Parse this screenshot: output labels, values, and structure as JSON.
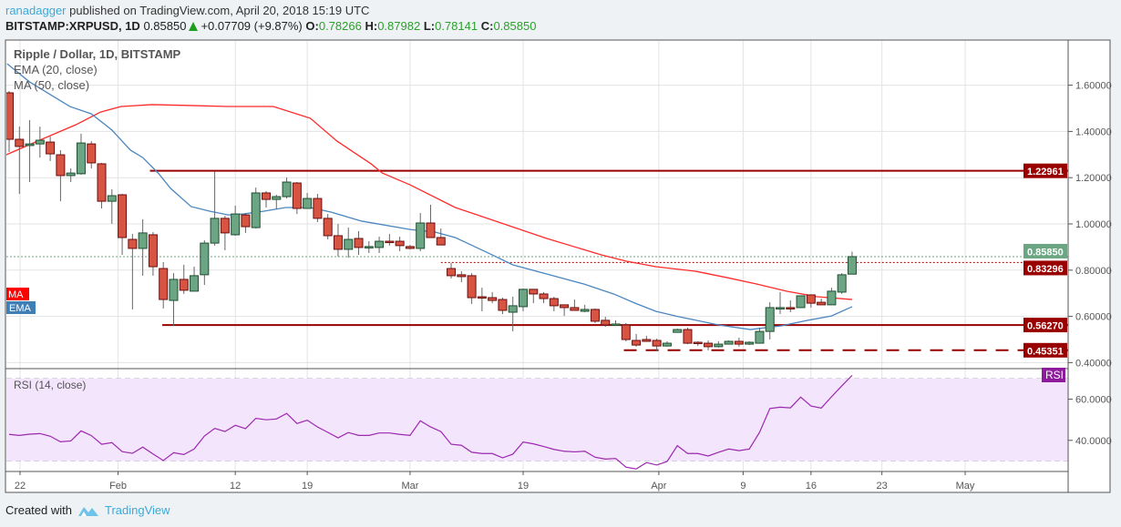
{
  "header": {
    "author": "ranadagger",
    "published_text": "published on TradingView.com, April 20, 2018 15:19 UTC",
    "symbol": "BITSTAMP:XRPUSD, 1D",
    "last": "0.85850",
    "change": "+0.07709 (+9.87%)",
    "open_label": "O:",
    "open": "0.78266",
    "high_label": "H:",
    "high": "0.87982",
    "low_label": "L:",
    "low": "0.78141",
    "close_label": "C:",
    "close": "0.85850"
  },
  "colors": {
    "up": "#6ba583",
    "up_border": "#1f4f30",
    "down": "#d75442",
    "down_border": "#6b0f0f",
    "ema": "#4a86c0",
    "ma": "#ff2a2a",
    "level": "#990000",
    "last_price": "#6ba583",
    "rsi": "#9c27b0",
    "rsi_bg": "#f3e5fc"
  },
  "chart_data": {
    "type": "candlestick",
    "title": "Ripple / Dollar, 1D, BITSTAMP",
    "legend": [
      "EMA (20, close)",
      "MA (50, close)"
    ],
    "series_tags": {
      "ma": "MA",
      "ema": "EMA"
    },
    "ylim": [
      0.38,
      1.78
    ],
    "price_ticks": [
      "1.60000",
      "1.40000",
      "1.20000",
      "1.00000",
      "0.80000",
      "0.60000",
      "0.40000"
    ],
    "x_ticks": [
      {
        "label": "22",
        "index": 1.06
      },
      {
        "label": "Feb",
        "index": 10.6
      },
      {
        "label": "12",
        "index": 22
      },
      {
        "label": "19",
        "index": 29
      },
      {
        "label": "Mar",
        "index": 39
      },
      {
        "label": "19",
        "index": 50
      },
      {
        "label": "Apr",
        "index": 63.2
      },
      {
        "label": "9",
        "index": 71.4
      },
      {
        "label": "16",
        "index": 78
      },
      {
        "label": "23",
        "index": 84.9
      },
      {
        "label": "May",
        "index": 93
      }
    ],
    "candles_ohlc": [
      [
        1.567,
        1.575,
        1.311,
        1.366
      ],
      [
        1.366,
        1.421,
        1.13,
        1.335
      ],
      [
        1.339,
        1.449,
        1.181,
        1.346
      ],
      [
        1.346,
        1.421,
        1.287,
        1.362
      ],
      [
        1.354,
        1.378,
        1.272,
        1.303
      ],
      [
        1.299,
        1.319,
        1.098,
        1.209
      ],
      [
        1.209,
        1.24,
        1.181,
        1.22
      ],
      [
        1.217,
        1.39,
        1.213,
        1.35
      ],
      [
        1.346,
        1.358,
        1.24,
        1.264
      ],
      [
        1.26,
        1.264,
        1.067,
        1.098
      ],
      [
        1.098,
        1.15,
        1.0,
        1.122
      ],
      [
        1.126,
        1.13,
        0.866,
        0.941
      ],
      [
        0.933,
        0.957,
        0.63,
        0.894
      ],
      [
        0.894,
        1.02,
        0.776,
        0.961
      ],
      [
        0.953,
        0.965,
        0.776,
        0.815
      ],
      [
        0.807,
        0.835,
        0.634,
        0.673
      ],
      [
        0.669,
        0.787,
        0.559,
        0.76
      ],
      [
        0.76,
        0.823,
        0.697,
        0.713
      ],
      [
        0.709,
        0.815,
        0.709,
        0.776
      ],
      [
        0.78,
        0.929,
        0.736,
        0.917
      ],
      [
        0.917,
        1.228,
        0.906,
        1.024
      ],
      [
        1.024,
        1.035,
        0.886,
        0.961
      ],
      [
        0.953,
        1.079,
        0.949,
        1.043
      ],
      [
        1.039,
        1.047,
        0.961,
        0.988
      ],
      [
        0.984,
        1.157,
        0.98,
        1.134
      ],
      [
        1.134,
        1.142,
        1.071,
        1.106
      ],
      [
        1.106,
        1.126,
        1.063,
        1.118
      ],
      [
        1.118,
        1.201,
        1.11,
        1.181
      ],
      [
        1.177,
        1.181,
        1.043,
        1.067
      ],
      [
        1.067,
        1.134,
        1.067,
        1.11
      ],
      [
        1.11,
        1.13,
        1.008,
        1.024
      ],
      [
        1.024,
        1.043,
        0.933,
        0.949
      ],
      [
        0.949,
        1.0,
        0.858,
        0.89
      ],
      [
        0.89,
        0.984,
        0.854,
        0.933
      ],
      [
        0.937,
        0.969,
        0.866,
        0.898
      ],
      [
        0.898,
        0.925,
        0.874,
        0.902
      ],
      [
        0.898,
        0.945,
        0.874,
        0.925
      ],
      [
        0.925,
        0.957,
        0.906,
        0.921
      ],
      [
        0.925,
        0.945,
        0.882,
        0.906
      ],
      [
        0.902,
        0.909,
        0.89,
        0.894
      ],
      [
        0.894,
        1.047,
        0.882,
        1.004
      ],
      [
        1.004,
        1.083,
        0.941,
        0.941
      ],
      [
        0.941,
        0.98,
        0.909,
        0.909
      ],
      [
        0.807,
        0.831,
        0.764,
        0.776
      ],
      [
        0.78,
        0.795,
        0.748,
        0.772
      ],
      [
        0.776,
        0.787,
        0.654,
        0.681
      ],
      [
        0.685,
        0.724,
        0.622,
        0.681
      ],
      [
        0.681,
        0.705,
        0.657,
        0.669
      ],
      [
        0.673,
        0.681,
        0.61,
        0.626
      ],
      [
        0.618,
        0.685,
        0.535,
        0.646
      ],
      [
        0.642,
        0.72,
        0.622,
        0.717
      ],
      [
        0.717,
        0.717,
        0.657,
        0.697
      ],
      [
        0.697,
        0.705,
        0.657,
        0.677
      ],
      [
        0.677,
        0.685,
        0.622,
        0.646
      ],
      [
        0.65,
        0.65,
        0.602,
        0.638
      ],
      [
        0.638,
        0.673,
        0.626,
        0.626
      ],
      [
        0.622,
        0.65,
        0.618,
        0.63
      ],
      [
        0.63,
        0.634,
        0.571,
        0.579
      ],
      [
        0.583,
        0.598,
        0.555,
        0.563
      ],
      [
        0.563,
        0.583,
        0.559,
        0.567
      ],
      [
        0.563,
        0.571,
        0.492,
        0.5
      ],
      [
        0.496,
        0.524,
        0.469,
        0.476
      ],
      [
        0.5,
        0.516,
        0.492,
        0.492
      ],
      [
        0.496,
        0.504,
        0.449,
        0.472
      ],
      [
        0.472,
        0.492,
        0.469,
        0.484
      ],
      [
        0.531,
        0.547,
        0.531,
        0.543
      ],
      [
        0.543,
        0.551,
        0.48,
        0.484
      ],
      [
        0.488,
        0.492,
        0.472,
        0.484
      ],
      [
        0.484,
        0.496,
        0.453,
        0.469
      ],
      [
        0.469,
        0.492,
        0.465,
        0.48
      ],
      [
        0.48,
        0.496,
        0.48,
        0.492
      ],
      [
        0.492,
        0.508,
        0.469,
        0.48
      ],
      [
        0.48,
        0.492,
        0.476,
        0.488
      ],
      [
        0.484,
        0.551,
        0.484,
        0.535
      ],
      [
        0.535,
        0.661,
        0.5,
        0.638
      ],
      [
        0.634,
        0.705,
        0.61,
        0.638
      ],
      [
        0.638,
        0.669,
        0.618,
        0.634
      ],
      [
        0.638,
        0.689,
        0.638,
        0.689
      ],
      [
        0.693,
        0.693,
        0.638,
        0.657
      ],
      [
        0.661,
        0.677,
        0.65,
        0.65
      ],
      [
        0.65,
        0.724,
        0.65,
        0.709
      ],
      [
        0.705,
        0.787,
        0.697,
        0.78
      ],
      [
        0.78266,
        0.87982,
        0.78141,
        0.8585
      ]
    ],
    "ema_20": [
      [
        -0.2,
        1.693
      ],
      [
        2,
        1.614
      ],
      [
        5.9,
        1.508
      ],
      [
        8,
        1.476
      ],
      [
        10,
        1.406
      ],
      [
        11.8,
        1.319
      ],
      [
        13,
        1.287
      ],
      [
        14.5,
        1.22
      ],
      [
        15.7,
        1.154
      ],
      [
        17.7,
        1.075
      ],
      [
        19.5,
        1.055
      ],
      [
        21.3,
        1.039
      ],
      [
        22.8,
        1.043
      ],
      [
        24.8,
        1.055
      ],
      [
        26.9,
        1.071
      ],
      [
        29.3,
        1.071
      ],
      [
        31.3,
        1.051
      ],
      [
        34.3,
        1.012
      ],
      [
        39,
        0.976
      ],
      [
        41.4,
        0.965
      ],
      [
        43.4,
        0.941
      ],
      [
        47,
        0.866
      ],
      [
        49,
        0.823
      ],
      [
        52.9,
        0.776
      ],
      [
        55.9,
        0.74
      ],
      [
        58.8,
        0.697
      ],
      [
        60.9,
        0.657
      ],
      [
        62.9,
        0.622
      ],
      [
        65,
        0.6
      ],
      [
        69,
        0.563
      ],
      [
        72.1,
        0.543
      ],
      [
        75.1,
        0.559
      ],
      [
        77.7,
        0.583
      ],
      [
        80,
        0.602
      ],
      [
        82,
        0.642
      ]
    ],
    "ma_50": [
      [
        -0.9,
        1.287
      ],
      [
        3.8,
        1.378
      ],
      [
        6.5,
        1.429
      ],
      [
        8.9,
        1.484
      ],
      [
        10.9,
        1.508
      ],
      [
        13.9,
        1.516
      ],
      [
        17.7,
        1.512
      ],
      [
        21.3,
        1.508
      ],
      [
        25.7,
        1.508
      ],
      [
        29.3,
        1.457
      ],
      [
        31.9,
        1.358
      ],
      [
        35.2,
        1.26
      ],
      [
        36.3,
        1.22
      ],
      [
        39,
        1.169
      ],
      [
        43.4,
        1.071
      ],
      [
        52.3,
        0.937
      ],
      [
        57.6,
        0.866
      ],
      [
        60,
        0.839
      ],
      [
        62.9,
        0.815
      ],
      [
        66.8,
        0.795
      ],
      [
        69.8,
        0.768
      ],
      [
        72.7,
        0.74
      ],
      [
        75.6,
        0.709
      ],
      [
        78.6,
        0.685
      ],
      [
        82,
        0.673
      ]
    ],
    "levels": [
      {
        "value": "1.22961",
        "price": 1.22961,
        "from_index": 13.7,
        "style": "solid"
      },
      {
        "value": "0.83296",
        "price": 0.83296,
        "from_index": 42,
        "style": "dotted"
      },
      {
        "value": "0.56270",
        "price": 0.5627,
        "from_index": 14.9,
        "style": "solid"
      },
      {
        "value": "0.45351",
        "price": 0.45351,
        "from_index": 59.8,
        "style": "dashed"
      }
    ],
    "last_price": {
      "value": "0.85850",
      "price": 0.8585
    },
    "rsi": {
      "label": "RSI (14, close)",
      "tag": "RSI",
      "upper": 70,
      "lower": 30,
      "ticks": [
        "60.0000",
        "40.0000"
      ],
      "values": [
        42.9,
        42.4,
        43.0,
        43.3,
        42.0,
        39.3,
        39.7,
        44.6,
        42.3,
        38.1,
        38.9,
        34.5,
        33.7,
        36.7,
        33.4,
        30.2,
        34.0,
        33.1,
        35.8,
        42.1,
        45.8,
        44.3,
        47.3,
        45.7,
        50.7,
        50.0,
        50.4,
        53.1,
        48.2,
        49.8,
        46.5,
        43.9,
        41.2,
        43.8,
        42.4,
        42.4,
        43.6,
        43.6,
        42.9,
        42.4,
        49.5,
        46.5,
        44.3,
        38.1,
        37.6,
        34.2,
        33.6,
        33.6,
        31.5,
        33.3,
        39.2,
        38.3,
        37.0,
        35.6,
        34.7,
        34.4,
        34.7,
        31.8,
        30.9,
        31.2,
        27.0,
        26.1,
        29.2,
        28.0,
        29.7,
        37.4,
        33.6,
        33.6,
        32.4,
        34.2,
        35.8,
        35.0,
        35.8,
        43.9,
        55.5,
        56.1,
        55.8,
        61.0,
        56.7,
        55.7,
        61.2,
        66.5,
        71.6
      ]
    }
  },
  "footer": {
    "created_with": "Created with",
    "brand": "TradingView"
  }
}
